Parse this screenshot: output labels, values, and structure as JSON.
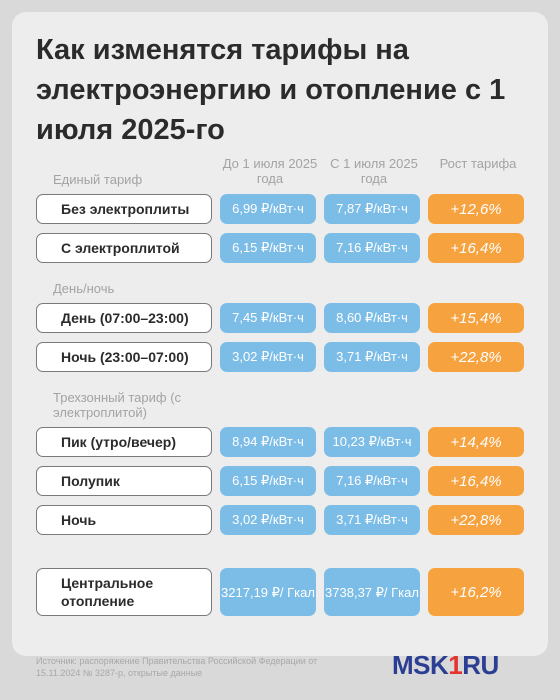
{
  "title": "Как изменятся тарифы на электроэнергию и отопление с 1 июля 2025-го",
  "columns": {
    "before": "До 1 июля 2025 года",
    "after": "С 1 июля 2025 года",
    "growth": "Рост тарифа"
  },
  "sections": {
    "single": "Единый тариф",
    "daynight": "День/ночь",
    "three_zone": "Трехзонный тариф (с электроплитой)"
  },
  "rows": [
    {
      "label": "Без электроплиты",
      "before": "6,99 ₽/кВт·ч",
      "after": "7,87 ₽/кВт·ч",
      "growth": "+12,6%"
    },
    {
      "label": "С электроплитой",
      "before": "6,15 ₽/кВт·ч",
      "after": "7,16 ₽/кВт·ч",
      "growth": "+16,4%"
    },
    {
      "label": "День (07:00–23:00)",
      "before": "7,45 ₽/кВт·ч",
      "after": "8,60 ₽/кВт·ч",
      "growth": "+15,4%"
    },
    {
      "label": "Ночь (23:00–07:00)",
      "before": "3,02 ₽/кВт·ч",
      "after": "3,71 ₽/кВт·ч",
      "growth": "+22,8%"
    },
    {
      "label": "Пик (утро/вечер)",
      "before": "8,94 ₽/кВт·ч",
      "after": "10,23 ₽/кВт·ч",
      "growth": "+14,4%"
    },
    {
      "label": "Полупик",
      "before": "6,15 ₽/кВт·ч",
      "after": "7,16 ₽/кВт·ч",
      "growth": "+16,4%"
    },
    {
      "label": "Ночь",
      "before": "3,02 ₽/кВт·ч",
      "after": "3,71 ₽/кВт·ч",
      "growth": "+22,8%"
    },
    {
      "label": "Центральное отопление",
      "before": "3217,19 ₽/ Гкал",
      "after": "3738,37 ₽/ Гкал",
      "growth": "+16,2%"
    }
  ],
  "source": "Источник: распоряжение Правительства Российской Федерации от 15.11.2024 № 3287-р, открытые данные",
  "logo": {
    "part1": "MSK",
    "part2": "1",
    "part3": "RU"
  },
  "colors": {
    "blue": "#7cbde8",
    "orange": "#f6a23f",
    "logo_blue": "#2a3f93",
    "logo_red": "#e3342f"
  }
}
